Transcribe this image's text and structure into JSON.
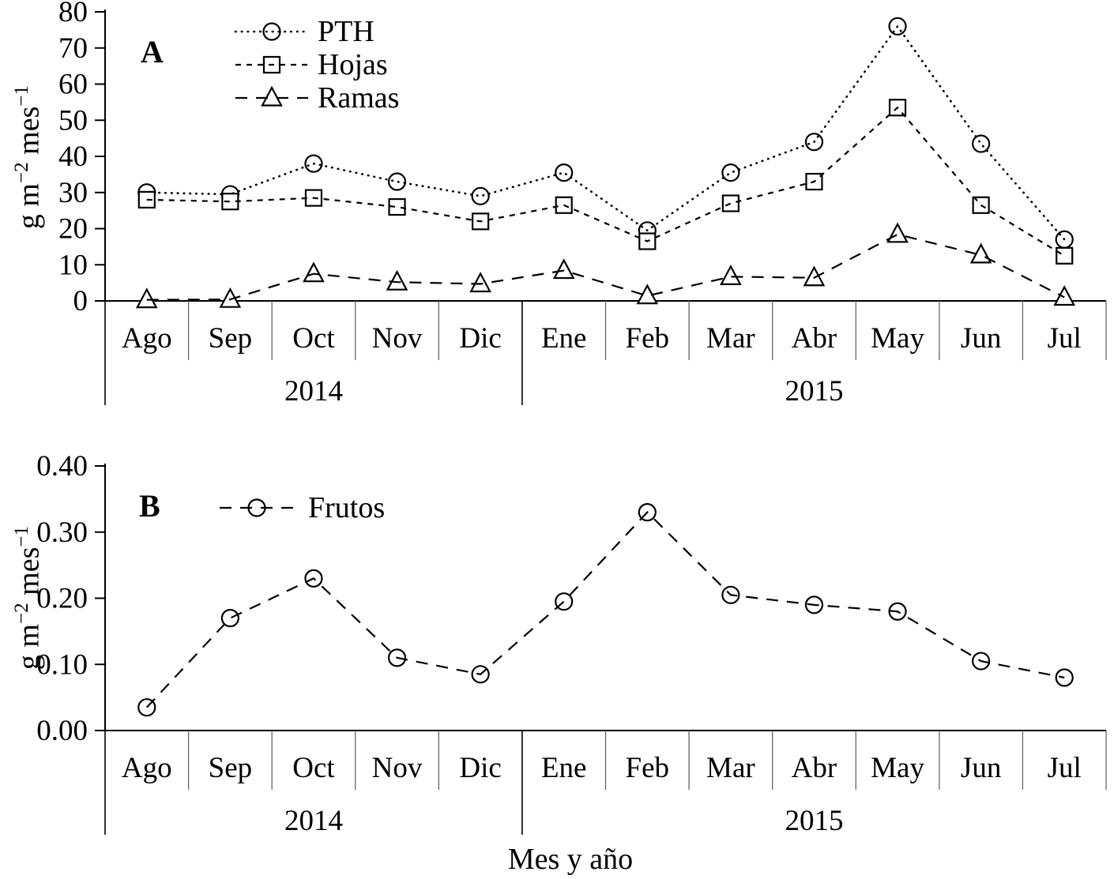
{
  "chart_data": [
    {
      "type": "line",
      "panel_label": "A",
      "ylabel": "g m−2 mes−1",
      "ylabel_parts": {
        "base1": "g m",
        "sup1": "−2",
        "base2": " mes",
        "sup2": "−1"
      },
      "ylim": [
        0,
        80
      ],
      "yticks": [
        0,
        10,
        20,
        30,
        40,
        50,
        60,
        70,
        80
      ],
      "ytick_labels": [
        "0",
        "10",
        "20",
        "30",
        "40",
        "50",
        "60",
        "70",
        "80"
      ],
      "categories": [
        "Ago",
        "Sep",
        "Oct",
        "Nov",
        "Dic",
        "Ene",
        "Feb",
        "Mar",
        "Abr",
        "May",
        "Jun",
        "Jul"
      ],
      "year_groups": [
        {
          "label": "2014",
          "from": 0,
          "to": 4
        },
        {
          "label": "2015",
          "from": 5,
          "to": 11
        }
      ],
      "grid": false,
      "legend_position": "inside-top-left",
      "series": [
        {
          "name": "PTH",
          "marker": "circle",
          "line": "dotted",
          "values": [
            30,
            29.5,
            38,
            33,
            29,
            35.5,
            19.5,
            35.5,
            44,
            76,
            43.5,
            17
          ]
        },
        {
          "name": "Hojas",
          "marker": "square",
          "line": "dashed-fine",
          "values": [
            28,
            27.5,
            28.5,
            26,
            22,
            26.5,
            16.5,
            27,
            33,
            53.5,
            26.5,
            12.5
          ]
        },
        {
          "name": "Ramas",
          "marker": "triangle",
          "line": "dashed",
          "values": [
            0.3,
            0.4,
            7.5,
            5.2,
            4.7,
            8.4,
            1.4,
            6.7,
            6.4,
            18.4,
            12.7,
            1
          ]
        }
      ]
    },
    {
      "type": "line",
      "panel_label": "B",
      "xlabel": "Mes y año",
      "ylabel": "g m−2 mes−1",
      "ylabel_parts": {
        "base1": "g m",
        "sup1": "−2",
        "base2": " mes",
        "sup2": "−1"
      },
      "ylim": [
        0,
        0.4
      ],
      "yticks": [
        0,
        0.1,
        0.2,
        0.3,
        0.4
      ],
      "ytick_labels": [
        "0.00",
        "0.10",
        "0.20",
        "0.30",
        "0.40"
      ],
      "categories": [
        "Ago",
        "Sep",
        "Oct",
        "Nov",
        "Dic",
        "Ene",
        "Feb",
        "Mar",
        "Abr",
        "May",
        "Jun",
        "Jul"
      ],
      "year_groups": [
        {
          "label": "2014",
          "from": 0,
          "to": 4
        },
        {
          "label": "2015",
          "from": 5,
          "to": 11
        }
      ],
      "grid": false,
      "legend_position": "inside-top-left",
      "series": [
        {
          "name": "Frutos",
          "marker": "circle",
          "line": "dashed",
          "values": [
            0.035,
            0.17,
            0.23,
            0.11,
            0.085,
            0.195,
            0.33,
            0.205,
            0.19,
            0.18,
            0.105,
            0.08
          ]
        }
      ]
    }
  ]
}
